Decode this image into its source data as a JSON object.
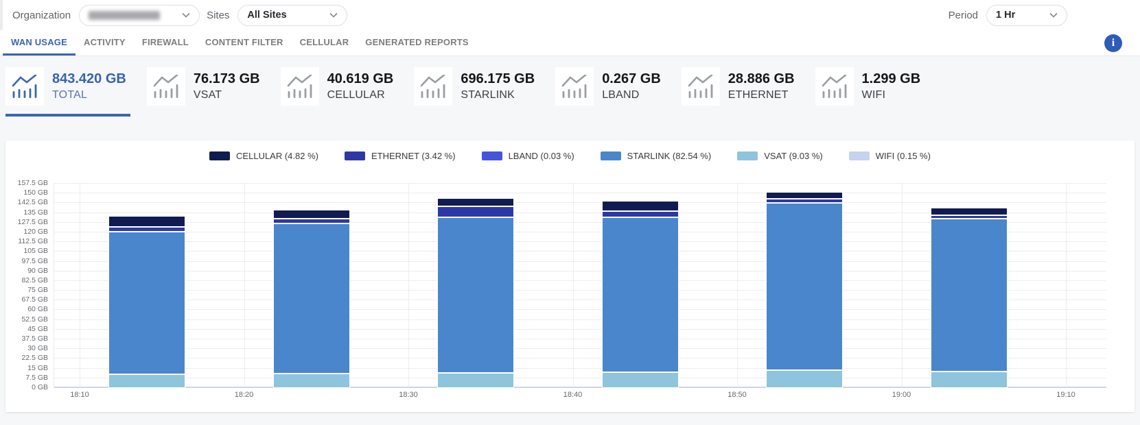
{
  "header": {
    "organization_label": "Organization",
    "organization_value_redacted": true,
    "sites_label": "Sites",
    "sites_value": "All Sites",
    "period_label": "Period",
    "period_value": "1 Hr"
  },
  "tabs": [
    {
      "label": "WAN USAGE",
      "active": true
    },
    {
      "label": "ACTIVITY",
      "active": false
    },
    {
      "label": "FIREWALL",
      "active": false
    },
    {
      "label": "CONTENT FILTER",
      "active": false
    },
    {
      "label": "CELLULAR",
      "active": false
    },
    {
      "label": "GENERATED REPORTS",
      "active": false
    }
  ],
  "info_icon_glyph": "i",
  "cards": [
    {
      "value": "843.420 GB",
      "label": "TOTAL",
      "active": true
    },
    {
      "value": "76.173 GB",
      "label": "VSAT",
      "active": false
    },
    {
      "value": "40.619 GB",
      "label": "CELLULAR",
      "active": false
    },
    {
      "value": "696.175 GB",
      "label": "STARLINK",
      "active": false
    },
    {
      "value": "0.267 GB",
      "label": "LBAND",
      "active": false
    },
    {
      "value": "28.886 GB",
      "label": "ETHERNET",
      "active": false
    },
    {
      "value": "1.299 GB",
      "label": "WIFI",
      "active": false
    }
  ],
  "colors": {
    "accent_blue": "#3a64b4",
    "info_icon": "#2e5cb8",
    "inactive_icon": "#9a9da1"
  },
  "chart_data": {
    "type": "bar",
    "stacked": true,
    "title": "",
    "xlabel": "",
    "ylabel": "",
    "x_ticks": [
      "18:10",
      "18:20",
      "18:30",
      "18:40",
      "18:50",
      "19:00",
      "19:10"
    ],
    "bar_slots": 6,
    "ylim": [
      0,
      157.5
    ],
    "y_tick_step": 7.5,
    "y_unit": "GB",
    "y_ticks": [
      "157.5 GB",
      "150 GB",
      "142.5 GB",
      "135 GB",
      "127.5 GB",
      "120 GB",
      "112.5 GB",
      "105 GB",
      "97.5 GB",
      "90 GB",
      "82.5 GB",
      "75 GB",
      "67.5 GB",
      "60 GB",
      "52.5 GB",
      "45 GB",
      "37.5 GB",
      "30 GB",
      "22.5 GB",
      "15 GB",
      "7.5 GB",
      "0 GB"
    ],
    "grid": true,
    "legend_position": "top",
    "stack_order": [
      "WIFI",
      "VSAT",
      "STARLINK",
      "LBAND",
      "ETHERNET",
      "CELLULAR"
    ],
    "series": [
      {
        "name": "CELLULAR",
        "legend_label": "CELLULAR (4.82 %)",
        "color": "#101c50",
        "values": [
          8.5,
          6.9,
          6.2,
          7.9,
          5.4,
          5.7
        ]
      },
      {
        "name": "ETHERNET",
        "legend_label": "ETHERNET (3.42 %)",
        "color": "#2d38a8",
        "values": [
          3.8,
          3.7,
          8.3,
          4.8,
          3.0,
          2.8
        ]
      },
      {
        "name": "LBAND",
        "legend_label": "LBAND (0.03 %)",
        "color": "#4553dd",
        "values": [
          0.05,
          0.04,
          0.05,
          0.05,
          0.05,
          0.03
        ]
      },
      {
        "name": "STARLINK",
        "legend_label": "STARLINK (82.54 %)",
        "color": "#4a86cc",
        "values": [
          110.0,
          116.0,
          120.0,
          119.5,
          129.0,
          118.0
        ]
      },
      {
        "name": "VSAT",
        "legend_label": "VSAT (9.03 %)",
        "color": "#8fc4dd",
        "values": [
          10.2,
          10.8,
          11.5,
          12.0,
          13.5,
          12.2
        ]
      },
      {
        "name": "WIFI",
        "legend_label": "WIFI (0.15 %)",
        "color": "#c5d2f0",
        "values": [
          0.2,
          0.2,
          0.2,
          0.2,
          0.25,
          0.25
        ]
      }
    ]
  }
}
